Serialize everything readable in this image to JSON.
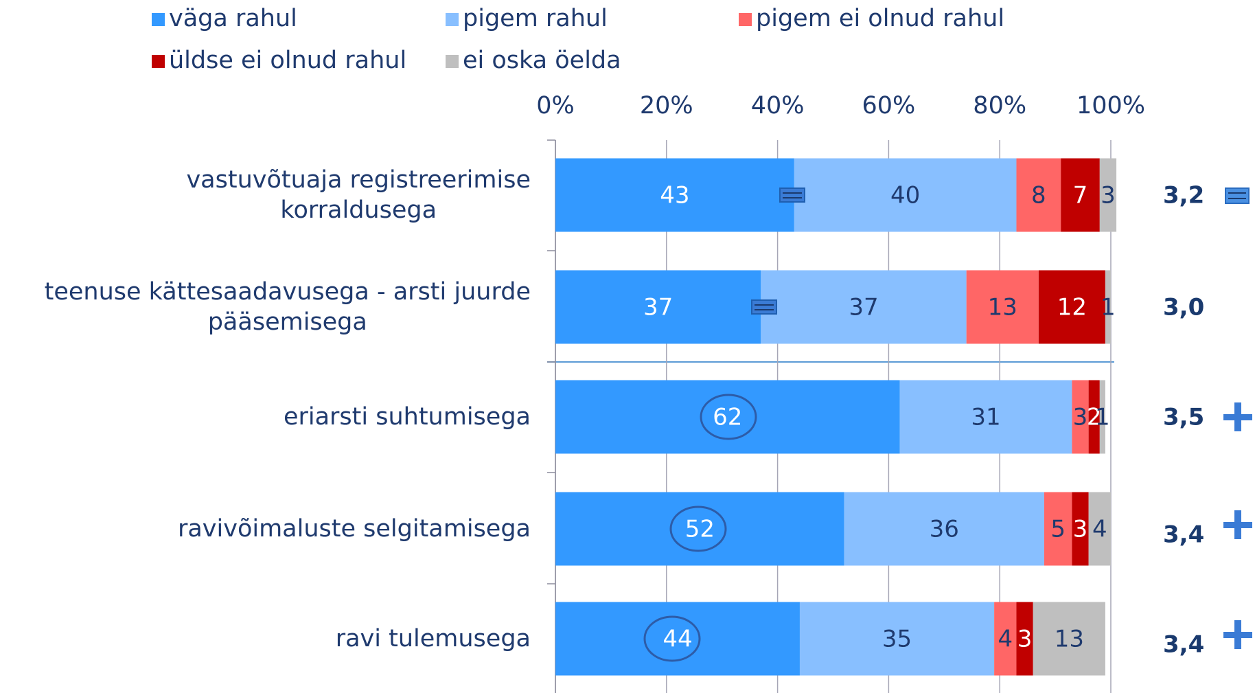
{
  "chart_data": {
    "type": "stacked_bar_horizontal",
    "categories": [
      "vastuvõtuaja registreerimise\nkorraldusega",
      "teenuse kättesaadavusega - arsti juurde\npääsemisega",
      "eriarsti suhtumisega",
      "ravivõimaluste selgitamisega",
      "ravi tulemusega"
    ],
    "series": [
      {
        "name": "väga rahul",
        "color": "#3399ff",
        "values": [
          43,
          37,
          62,
          52,
          44
        ]
      },
      {
        "name": "pigem rahul",
        "color": "#88bfff",
        "values": [
          40,
          37,
          31,
          36,
          35
        ]
      },
      {
        "name": "pigem ei olnud rahul",
        "color": "#ff6666",
        "values": [
          8,
          13,
          3,
          5,
          4
        ]
      },
      {
        "name": "üldse ei olnud rahul",
        "color": "#c00000",
        "values": [
          7,
          12,
          2,
          3,
          3
        ]
      },
      {
        "name": "ei oska öelda",
        "color": "#bfbfbf",
        "values": [
          3,
          1,
          1,
          4,
          13
        ]
      }
    ],
    "xlim": [
      0,
      100
    ],
    "xticks": [
      {
        "value": 0,
        "label": "0%"
      },
      {
        "value": 20,
        "label": "20%"
      },
      {
        "value": 40,
        "label": "40%"
      },
      {
        "value": 60,
        "label": "60%"
      },
      {
        "value": 80,
        "label": "80%"
      },
      {
        "value": 100,
        "label": "100%"
      }
    ],
    "grid": true,
    "legend": "top",
    "scores": [
      "3,2",
      "3,0",
      "3,5",
      "3,4",
      "3,4"
    ],
    "score_signs": [
      "=",
      null,
      "+",
      "+",
      "+"
    ]
  }
}
